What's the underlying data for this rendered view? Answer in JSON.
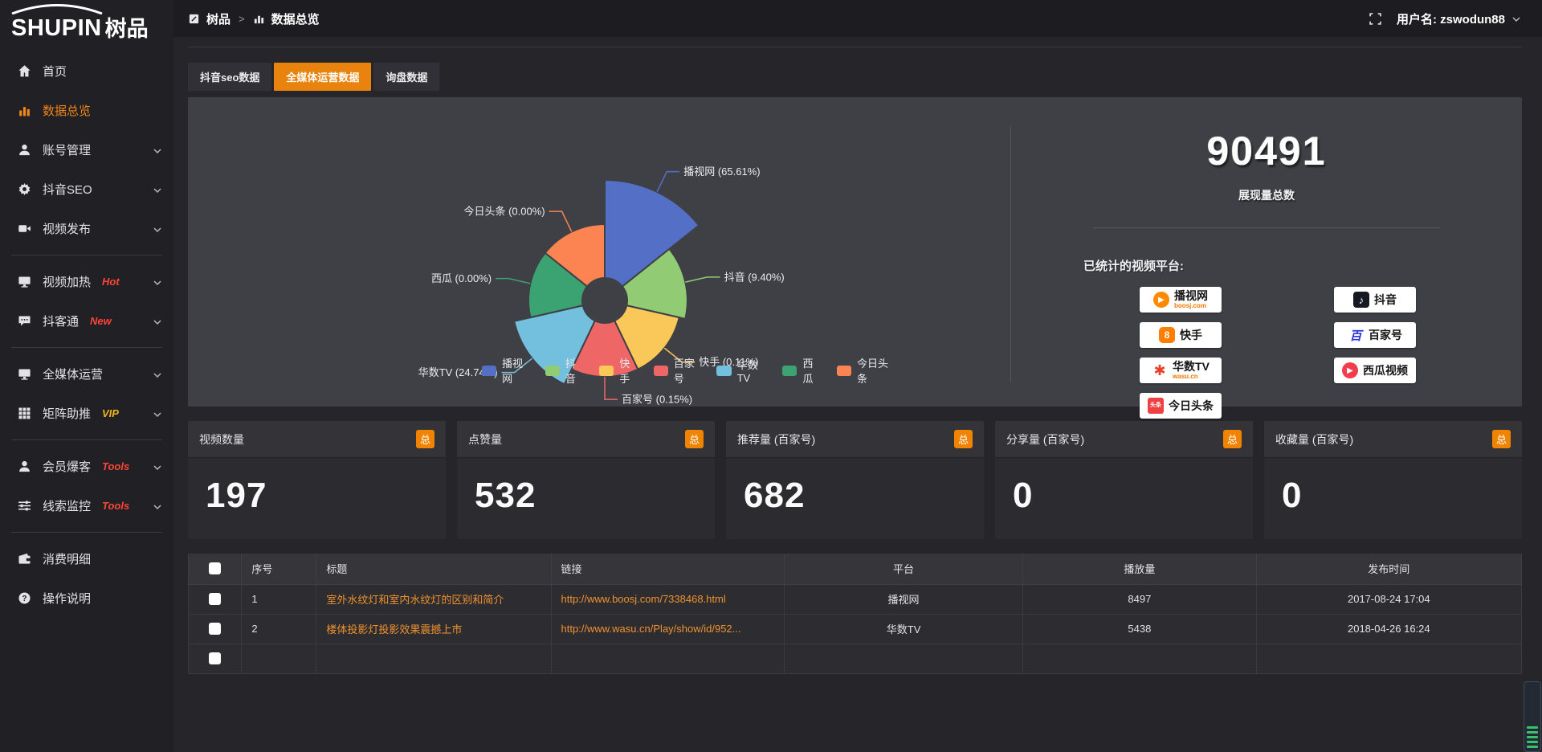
{
  "header": {
    "logo_en": "SHUPIN",
    "logo_cn": "树品",
    "breadcrumb": [
      {
        "label": "树品"
      },
      {
        "label": "数据总览"
      }
    ],
    "breadcrumb_sep": ">",
    "username": "用户名: zswodun88"
  },
  "sidebar": {
    "items": [
      {
        "key": "home",
        "label": "首页",
        "icon": "home"
      },
      {
        "key": "data-overview",
        "label": "数据总览",
        "icon": "bar-chart",
        "active": true
      },
      {
        "key": "account-management",
        "label": "账号管理",
        "icon": "user",
        "chevron": true
      },
      {
        "key": "douyin-seo",
        "label": "抖音SEO",
        "icon": "gear",
        "chevron": true
      },
      {
        "key": "video-publish",
        "label": "视频发布",
        "icon": "video",
        "chevron": true
      },
      {
        "divider": true
      },
      {
        "key": "video-heating",
        "label": "视频加热",
        "icon": "monitor",
        "badge": "Hot",
        "badge_color": "#ff4438",
        "chevron": true
      },
      {
        "key": "douketong",
        "label": "抖客通",
        "icon": "chat",
        "badge": "New",
        "badge_color": "#ff4438",
        "chevron": true
      },
      {
        "divider": true
      },
      {
        "key": "omni-media",
        "label": "全媒体运营",
        "icon": "monitor",
        "chevron": true
      },
      {
        "key": "matrix-boost",
        "label": "矩阵助推",
        "icon": "grid",
        "badge": "VIP",
        "badge_color": "#f0b41c",
        "chevron": true
      },
      {
        "divider": true
      },
      {
        "key": "member-baoke",
        "label": "会员爆客",
        "icon": "user",
        "badge": "Tools",
        "badge_color": "#ff4438",
        "chevron": true
      },
      {
        "key": "lead-monitor",
        "label": "线索监控",
        "icon": "sliders",
        "badge": "Tools",
        "badge_color": "#ff4438",
        "chevron": true
      },
      {
        "divider": true
      },
      {
        "key": "consumption-detail",
        "label": "消费明细",
        "icon": "wallet"
      },
      {
        "key": "operation-guide",
        "label": "操作说明",
        "icon": "question"
      }
    ]
  },
  "tabs": [
    {
      "key": "douyin-seo-data",
      "label": "抖音seo数据",
      "active": false
    },
    {
      "key": "omni-media-data",
      "label": "全媒体运营数据",
      "active": true
    },
    {
      "key": "inquiry-data",
      "label": "询盘数据",
      "active": false
    }
  ],
  "chart_data": {
    "type": "pie",
    "rose": true,
    "legend_position": "bottom",
    "items": [
      {
        "name": "播视网",
        "pct": "65.61%",
        "value": 65.61,
        "color": "#5470c6"
      },
      {
        "name": "抖音",
        "pct": "9.40%",
        "value": 9.4,
        "color": "#91cc75"
      },
      {
        "name": "快手",
        "pct": "0.11%",
        "value": 0.11,
        "color": "#fac858"
      },
      {
        "name": "百家号",
        "pct": "0.15%",
        "value": 0.15,
        "color": "#ee6666"
      },
      {
        "name": "华数TV",
        "pct": "24.74%",
        "value": 24.74,
        "color": "#73c0de"
      },
      {
        "name": "西瓜",
        "pct": "0.00%",
        "value": 0.0,
        "color": "#3ba272"
      },
      {
        "name": "今日头条",
        "pct": "0.00%",
        "value": 0.0,
        "color": "#fc8452"
      }
    ]
  },
  "summary": {
    "total": "90491",
    "total_label": "展现量总数",
    "platforms_label": "已统计的视频平台:",
    "platform_columns": [
      [
        {
          "key": "boosj",
          "name": "播视网",
          "sub": "boosj.com"
        },
        {
          "key": "kuaishou",
          "name": "快手"
        },
        {
          "key": "wasu",
          "name": "华数TV",
          "sub": "wasu.cn"
        },
        {
          "key": "toutiao",
          "name": "今日头条"
        }
      ],
      [
        {
          "key": "douyin",
          "name": "抖音"
        },
        {
          "key": "baijiahao",
          "name": "百家号"
        },
        {
          "key": "xigua",
          "name": "西瓜视频"
        }
      ]
    ]
  },
  "stat_cards": [
    {
      "title": "视频数量",
      "badge": "总",
      "value": "197"
    },
    {
      "title": "点赞量",
      "badge": "总",
      "value": "532"
    },
    {
      "title": "推荐量 (百家号)",
      "badge": "总",
      "value": "682"
    },
    {
      "title": "分享量 (百家号)",
      "badge": "总",
      "value": "0"
    },
    {
      "title": "收藏量 (百家号)",
      "badge": "总",
      "value": "0"
    }
  ],
  "table": {
    "columns": [
      "序号",
      "标题",
      "链接",
      "平台",
      "播放量",
      "发布时间"
    ],
    "rows": [
      {
        "no": "1",
        "title": "室外水纹灯和室内水纹灯的区别和简介",
        "link": "http://www.boosj.com/7338468.html",
        "platform": "播视网",
        "plays": "8497",
        "time": "2017-08-24 17:04"
      },
      {
        "no": "2",
        "title": "楼体投影灯投影效果震撼上市",
        "link": "http://www.wasu.cn/Play/show/id/952...",
        "platform": "华数TV",
        "plays": "5438",
        "time": "2018-04-26 16:24"
      },
      {
        "no": "",
        "title": "",
        "link": "",
        "platform": "",
        "plays": "",
        "time": ""
      }
    ]
  },
  "colors": {
    "accent": "#f08300",
    "panel": "#3e4045",
    "active_text": "#f08519"
  }
}
